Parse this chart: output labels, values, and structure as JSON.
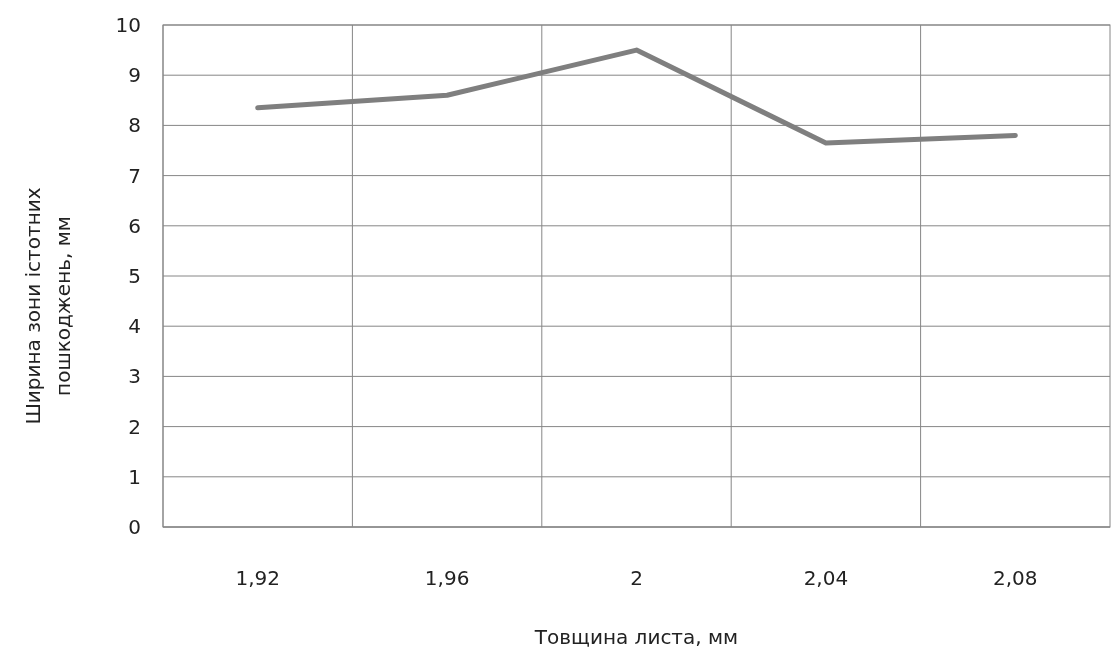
{
  "chart_data": {
    "type": "line",
    "xlabel": "Товщина листа, мм",
    "ylabel": "Ширина зони істотних пошкоджень, мм",
    "categories": [
      "1,92",
      "1,96",
      "2",
      "2,04",
      "2,08"
    ],
    "series": [
      {
        "color": "#7f7f7f",
        "values": [
          8.35,
          8.6,
          9.5,
          7.65,
          7.8
        ]
      }
    ],
    "ylim": [
      0,
      10
    ],
    "yticks": [
      0,
      1,
      2,
      3,
      4,
      5,
      6,
      7,
      8,
      9,
      10
    ],
    "grid": true,
    "marker": "none",
    "line_style": "solid"
  }
}
